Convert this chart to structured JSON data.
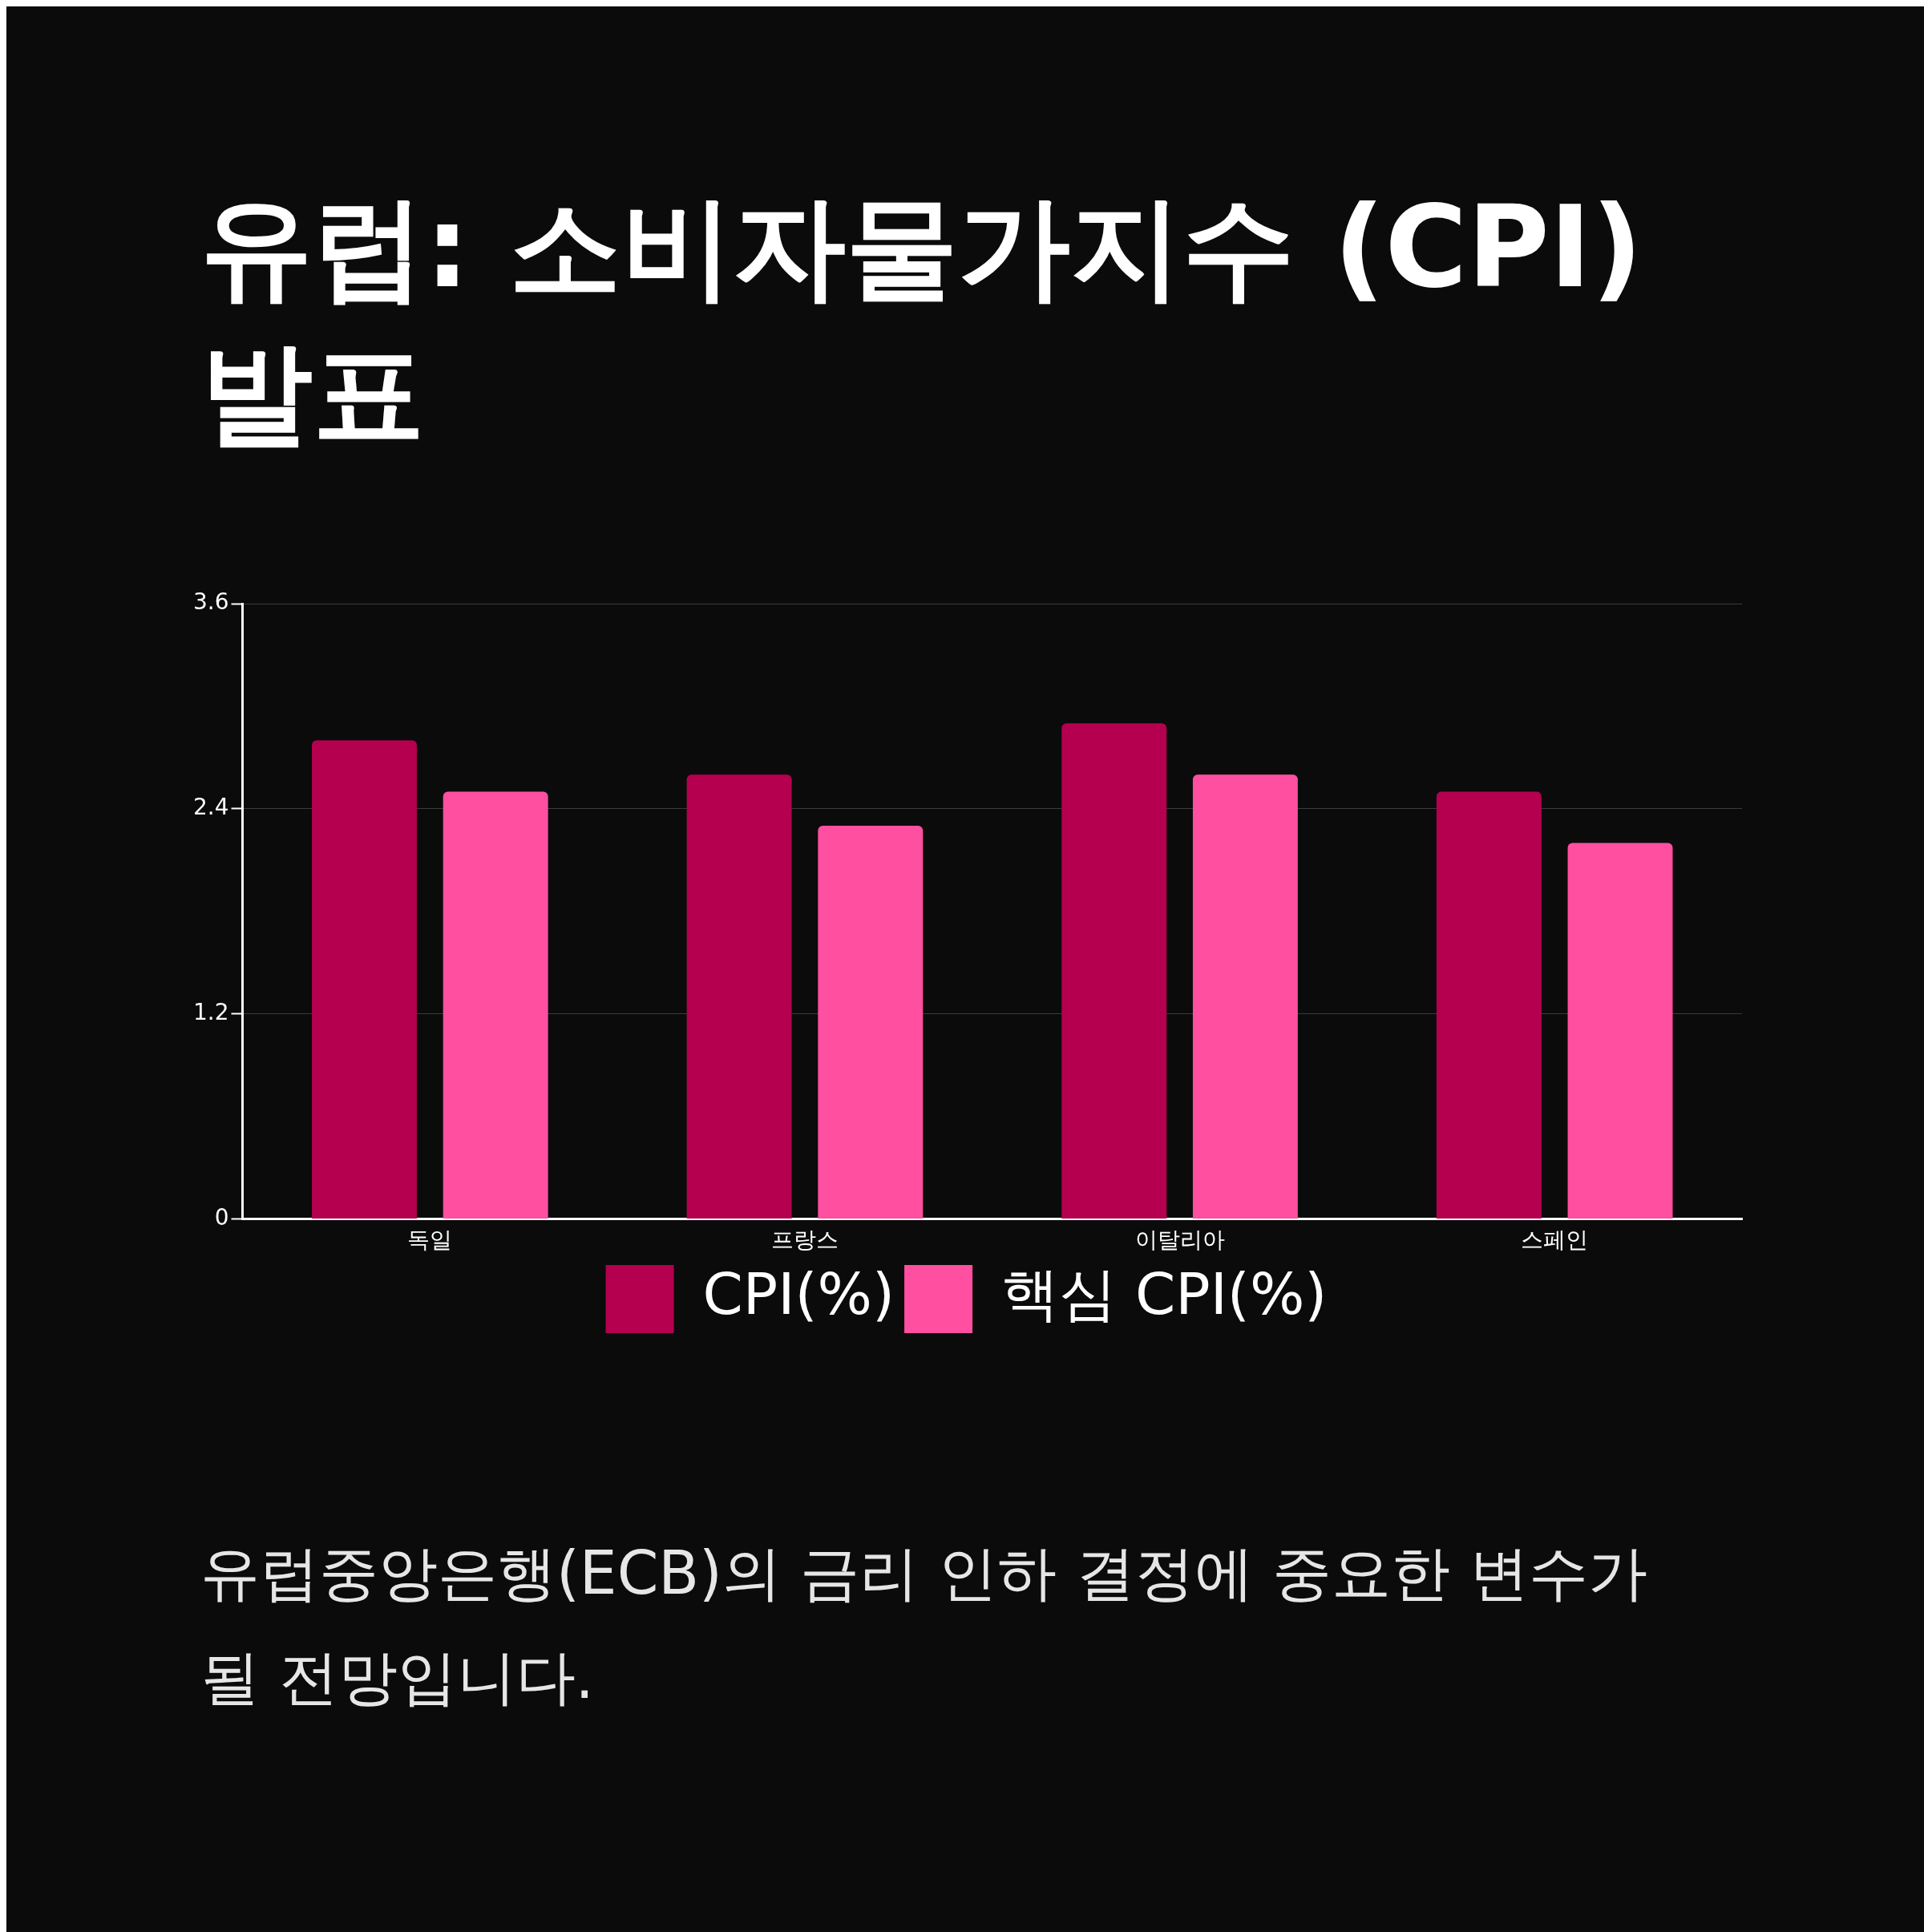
{
  "chart_data": {
    "type": "bar",
    "title": "유럽: 소비자물가지수 (CPI) 발표",
    "categories": [
      "독일",
      "프랑스",
      "이탈리아",
      "스페인"
    ],
    "series": [
      {
        "name": "CPI(%)",
        "color": "#b5004f",
        "values": [
          2.8,
          2.6,
          2.9,
          2.5
        ]
      },
      {
        "name": "핵심 CPI(%)",
        "color": "#ff4fa0",
        "values": [
          2.5,
          2.3,
          2.6,
          2.2
        ]
      }
    ],
    "ylim": [
      0,
      3.6
    ],
    "yticks": [
      0,
      1.2,
      2.4,
      3.6
    ],
    "grid": "y",
    "legend": "bottom",
    "annotations": [
      "유럽중앙은행(ECB)의 금리 인하 결정에 중요한 변수가 될 전망입니다."
    ]
  }
}
